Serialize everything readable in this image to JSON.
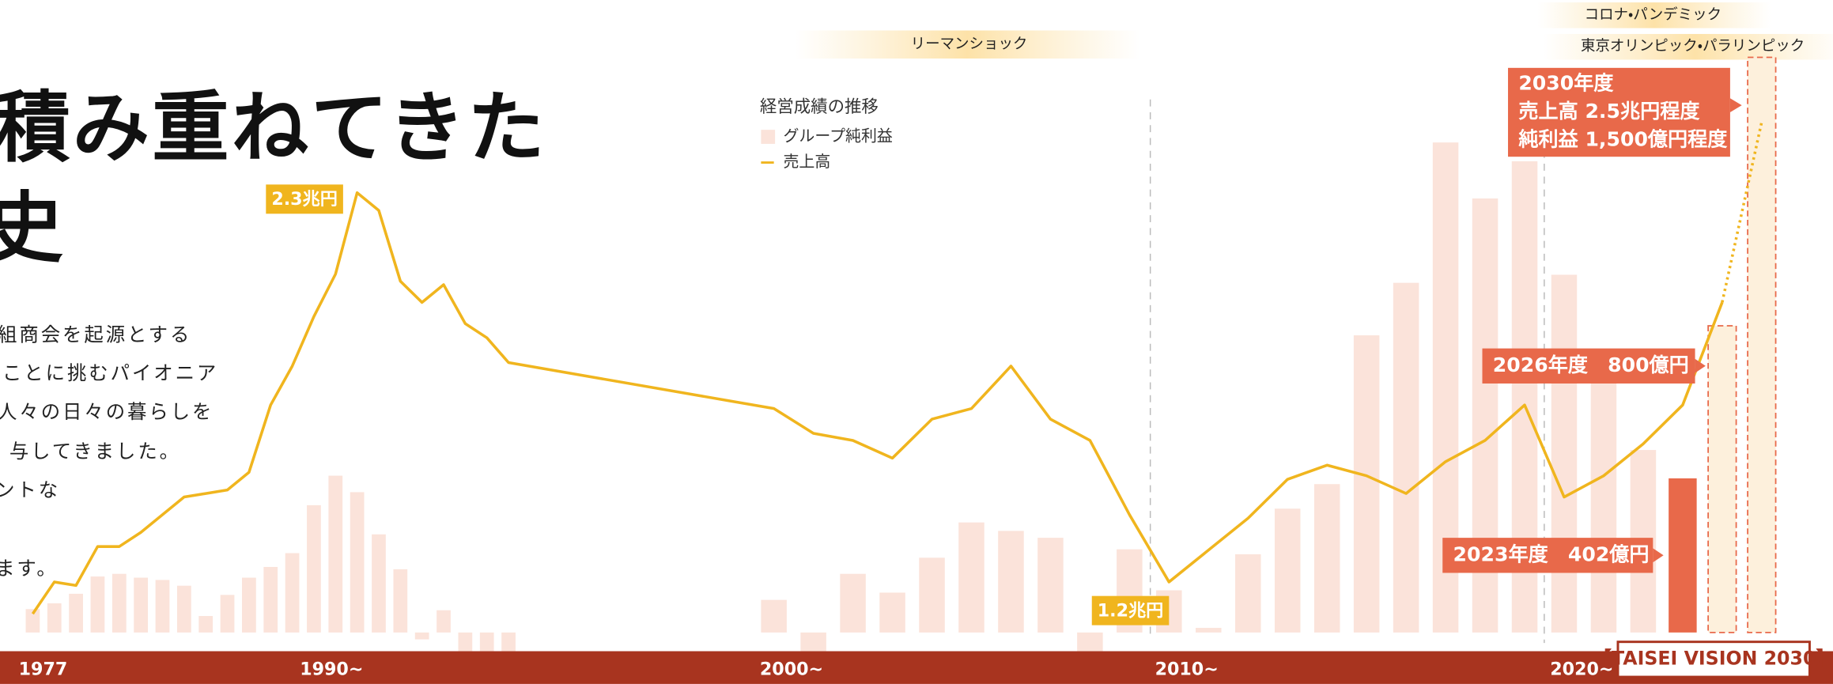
{
  "headline": [
    "積み重ねてきた",
    "史"
  ],
  "body": [
    "組商会を起源とする",
    "ことに挑むパイオニア",
    "人々の日々の暮らしを",
    "与してきました。",
    "ントな",
    "ます。"
  ],
  "events": [
    "リーマンショック",
    "コロナ・パンデミック",
    "東京オリンピック・パラリンピック"
  ],
  "chart_data": {
    "type": "bar",
    "legend_title": "経営成績の推移",
    "categories": [
      "1977",
      null,
      null,
      null,
      null,
      null,
      null,
      null,
      null,
      null,
      null,
      null,
      null,
      "1990~",
      null,
      null,
      null,
      null,
      null,
      null,
      null,
      null,
      null,
      "2000~",
      null,
      null,
      null,
      null,
      null,
      null,
      null,
      null,
      null,
      "2010~",
      null,
      null,
      null,
      null,
      null,
      null,
      null,
      null,
      null,
      "2020~",
      null,
      null,
      null,
      null,
      null
    ],
    "series": [
      {
        "name": "グループ純利益",
        "type": "bar",
        "color": "#fbe3da",
        "highlight_color": "#e8694a",
        "forecast_color": "#fdf0dc",
        "values": [
          61,
          76,
          101,
          146,
          153,
          143,
          137,
          122,
          43,
          98,
          143,
          171,
          207,
          332,
          409,
          366,
          256,
          165,
          -18,
          58,
          -49,
          -49,
          -49,
          85,
          -49,
          153,
          104,
          195,
          287,
          265,
          247,
          -49,
          217,
          110,
          12,
          204,
          323,
          387,
          775,
          912,
          1278,
          1132,
          1229,
          933,
          674,
          476,
          402,
          800,
          1500
        ]
      },
      {
        "name": "売上高",
        "type": "line",
        "color": "#f0b51e",
        "values": [
          1.11,
          1.2,
          1.19,
          1.3,
          1.3,
          1.34,
          1.39,
          1.44,
          1.45,
          1.46,
          1.51,
          1.7,
          1.81,
          1.95,
          2.07,
          2.3,
          2.25,
          2.05,
          1.99,
          2.04,
          1.93,
          1.89,
          1.82,
          1.69,
          1.62,
          1.6,
          1.55,
          1.66,
          1.69,
          1.81,
          1.66,
          1.6,
          1.39,
          1.2,
          1.29,
          1.38,
          1.49,
          1.53,
          1.5,
          1.45,
          1.54,
          1.6,
          1.7,
          1.44,
          1.5,
          1.59,
          1.7,
          1.99,
          2.5
        ],
        "value_labels": [
          null,
          null,
          null,
          null,
          null,
          null,
          null,
          null,
          null,
          null,
          null,
          null,
          null,
          null,
          null,
          "2.3兆円",
          null,
          null,
          null,
          null,
          null,
          null,
          null,
          null,
          null,
          null,
          null,
          null,
          null,
          null,
          null,
          null,
          null,
          "1.2兆円",
          null,
          null,
          null,
          null,
          null,
          null,
          null,
          null,
          null,
          null,
          null,
          null,
          null,
          null,
          null
        ]
      }
    ],
    "highlight_index": 46,
    "forecast_from": 47,
    "annotations": [
      "2030年度",
      "売上高 2.5兆円程度",
      "純利益 1,500億円程度",
      "2026年度　800億円",
      "2023年度　402億円"
    ],
    "badge": "【TAISEI VISION 2030】"
  }
}
